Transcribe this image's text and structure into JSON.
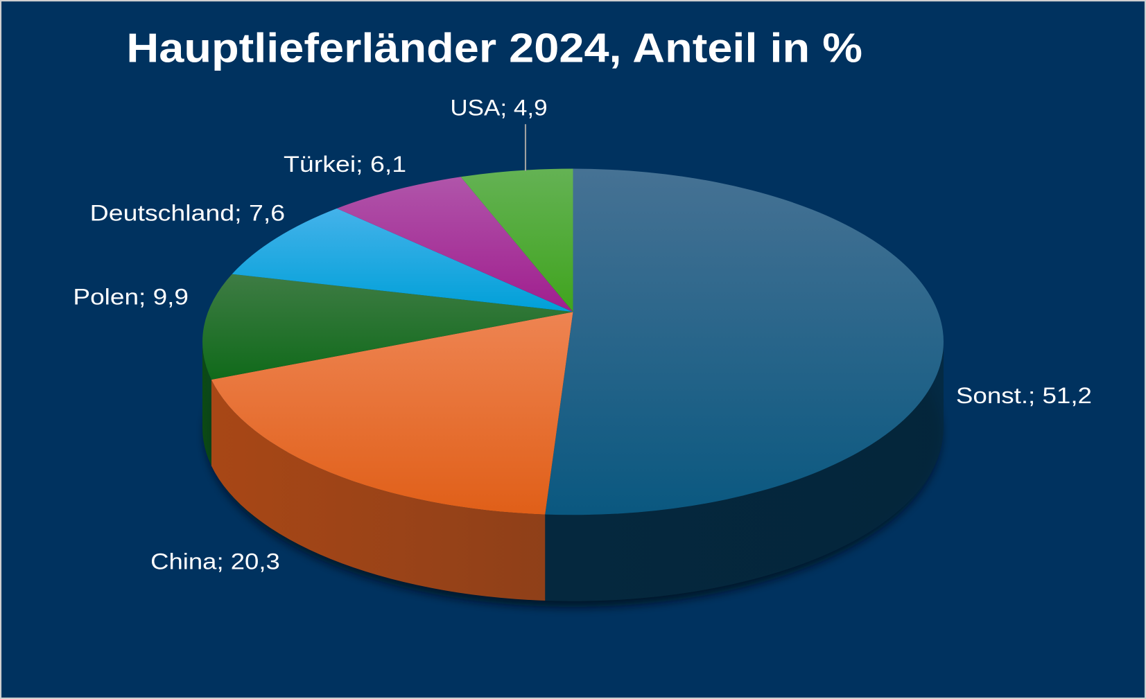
{
  "chart_data": {
    "type": "pie",
    "style": "3d",
    "title": "Hauptlieferländer 2024, Anteil in %",
    "categories": [
      "Sonst.",
      "China",
      "Polen",
      "Deutschland",
      "Türkei",
      "USA"
    ],
    "values": [
      51.2,
      20.3,
      9.9,
      7.6,
      6.1,
      4.9
    ],
    "value_labels": [
      "51,2",
      "20,3",
      "9,9",
      "7,6",
      "6,1",
      "4,9"
    ],
    "label_separator": "; ",
    "colors": {
      "background": "#00325f",
      "Sonst.": [
        "#467294",
        "#0a5880",
        "#05283e"
      ],
      "China": [
        "#ee8452",
        "#e05f18",
        "#a84716"
      ],
      "Polen": [
        "#3e7c44",
        "#106a1a",
        "#0c4a12"
      ],
      "Deutschland": [
        "#44b2ea",
        "#00a0d8",
        "#00709a"
      ],
      "Türkei": [
        "#b055aa",
        "#a01e8e",
        "#701464"
      ],
      "USA": [
        "#64b254",
        "#40a41e",
        "#2e7014"
      ]
    }
  }
}
